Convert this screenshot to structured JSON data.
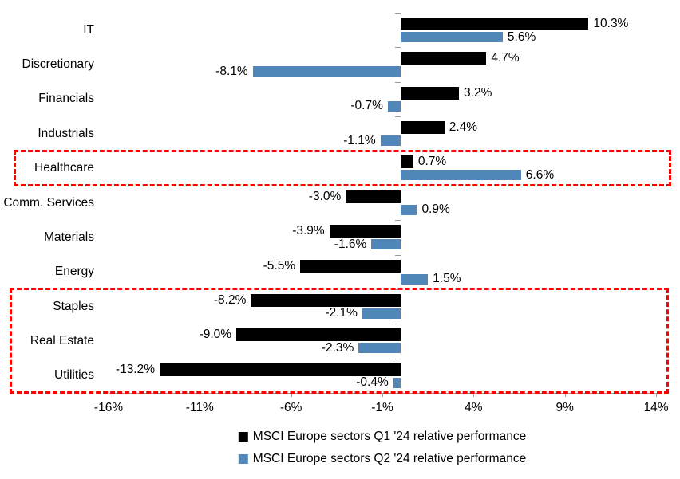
{
  "chart_data": {
    "type": "bar",
    "orientation": "horizontal",
    "title": "",
    "categories": [
      "IT",
      "Discretionary",
      "Financials",
      "Industrials",
      "Healthcare",
      "Comm. Services",
      "Materials",
      "Energy",
      "Staples",
      "Real Estate",
      "Utilities"
    ],
    "series": [
      {
        "name": "MSCI Europe sectors Q1 '24 relative performance",
        "color": "#000000",
        "values": [
          10.3,
          4.7,
          3.2,
          2.4,
          0.7,
          -3.0,
          -3.9,
          -5.5,
          -8.2,
          -9.0,
          -13.2
        ],
        "labels": [
          "10.3%",
          "4.7%",
          "3.2%",
          "2.4%",
          "0.7%",
          "-3.0%",
          "-3.9%",
          "-5.5%",
          "-8.2%",
          "-9.0%",
          "-13.2%"
        ]
      },
      {
        "name": "MSCI Europe sectors Q2 '24 relative performance",
        "color": "#5086b8",
        "values": [
          5.6,
          -8.1,
          -0.7,
          -1.1,
          6.6,
          0.9,
          -1.6,
          1.5,
          -2.1,
          -2.3,
          -0.4
        ],
        "labels": [
          "5.6%",
          "-8.1%",
          "-0.7%",
          "-1.1%",
          "6.6%",
          "0.9%",
          "-1.6%",
          "1.5%",
          "-2.1%",
          "-2.3%",
          "-0.4%"
        ]
      }
    ],
    "xlim": [
      -16,
      14
    ],
    "x_ticks": [
      -16,
      -11,
      -6,
      -1,
      4,
      9,
      14
    ],
    "x_tick_labels": [
      "-16%",
      "-11%",
      "-6%",
      "-1%",
      "4%",
      "9%",
      "14%"
    ],
    "grid": false,
    "legend_position": "bottom",
    "axis_color": "#9b9b9b",
    "highlight_color": "#fe0000",
    "highlights": [
      {
        "categories": [
          "Healthcare"
        ]
      },
      {
        "categories": [
          "Staples",
          "Real Estate",
          "Utilities"
        ]
      }
    ]
  }
}
